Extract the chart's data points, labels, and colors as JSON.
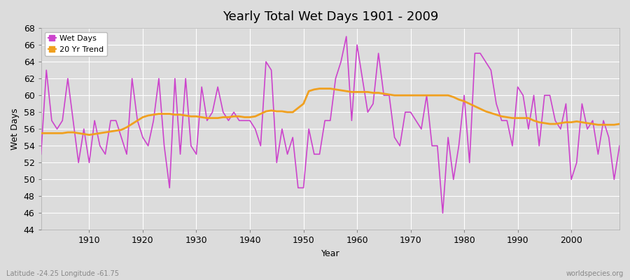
{
  "title": "Yearly Total Wet Days 1901 - 2009",
  "xlabel": "Year",
  "ylabel": "Wet Days",
  "footnote_left": "Latitude -24.25 Longitude -61.75",
  "footnote_right": "worldspecies.org",
  "ylim": [
    44,
    68
  ],
  "line_color": "#cc44cc",
  "trend_color": "#f0a020",
  "background_color": "#dcdcdc",
  "plot_bg_color": "#dcdcdc",
  "years": [
    1901,
    1902,
    1903,
    1904,
    1905,
    1906,
    1907,
    1908,
    1909,
    1910,
    1911,
    1912,
    1913,
    1914,
    1915,
    1916,
    1917,
    1918,
    1919,
    1920,
    1921,
    1922,
    1923,
    1924,
    1925,
    1926,
    1927,
    1928,
    1929,
    1930,
    1931,
    1932,
    1933,
    1934,
    1935,
    1936,
    1937,
    1938,
    1939,
    1940,
    1941,
    1942,
    1943,
    1944,
    1945,
    1946,
    1947,
    1948,
    1949,
    1950,
    1951,
    1952,
    1953,
    1954,
    1955,
    1956,
    1957,
    1958,
    1959,
    1960,
    1961,
    1962,
    1963,
    1964,
    1965,
    1966,
    1967,
    1968,
    1969,
    1970,
    1971,
    1972,
    1973,
    1974,
    1975,
    1976,
    1977,
    1978,
    1979,
    1980,
    1981,
    1982,
    1983,
    1984,
    1985,
    1986,
    1987,
    1988,
    1989,
    1990,
    1991,
    1992,
    1993,
    1994,
    1995,
    1996,
    1997,
    1998,
    1999,
    2000,
    2001,
    2002,
    2003,
    2004,
    2005,
    2006,
    2007,
    2008,
    2009
  ],
  "wet_days": [
    53,
    63,
    57,
    56,
    57,
    62,
    57,
    52,
    56,
    52,
    57,
    54,
    53,
    57,
    57,
    55,
    53,
    62,
    57,
    55,
    54,
    57,
    62,
    54,
    49,
    62,
    53,
    62,
    54,
    53,
    61,
    57,
    58,
    61,
    58,
    57,
    58,
    57,
    57,
    57,
    56,
    54,
    64,
    63,
    52,
    56,
    53,
    55,
    49,
    49,
    56,
    53,
    53,
    57,
    57,
    62,
    64,
    67,
    57,
    66,
    62,
    58,
    59,
    65,
    60,
    60,
    55,
    54,
    58,
    58,
    57,
    56,
    60,
    54,
    54,
    46,
    55,
    50,
    54,
    60,
    52,
    65,
    65,
    64,
    63,
    59,
    57,
    57,
    54,
    61,
    60,
    56,
    60,
    54,
    60,
    60,
    57,
    56,
    59,
    50,
    52,
    59,
    56,
    57,
    53,
    57,
    55,
    50,
    54
  ],
  "trend_values": [
    55.5,
    55.5,
    55.5,
    55.5,
    55.5,
    55.6,
    55.6,
    55.5,
    55.4,
    55.3,
    55.4,
    55.5,
    55.6,
    55.7,
    55.8,
    55.9,
    56.2,
    56.6,
    57.0,
    57.4,
    57.6,
    57.7,
    57.8,
    57.8,
    57.8,
    57.7,
    57.7,
    57.6,
    57.5,
    57.5,
    57.4,
    57.3,
    57.3,
    57.3,
    57.4,
    57.4,
    57.5,
    57.5,
    57.4,
    57.4,
    57.5,
    57.8,
    58.1,
    58.2,
    58.1,
    58.1,
    58.0,
    58.0,
    58.5,
    59.0,
    60.5,
    60.7,
    60.8,
    60.8,
    60.8,
    60.7,
    60.6,
    60.5,
    60.4,
    60.4,
    60.4,
    60.4,
    60.3,
    60.3,
    60.2,
    60.1,
    60.0,
    60.0,
    60.0,
    60.0,
    60.0,
    60.0,
    60.0,
    60.0,
    60.0,
    60.0,
    60.0,
    59.8,
    59.5,
    59.3,
    59.0,
    58.7,
    58.4,
    58.1,
    57.9,
    57.7,
    57.5,
    57.4,
    57.3,
    57.3,
    57.3,
    57.3,
    57.0,
    56.8,
    56.7,
    56.6,
    56.6,
    56.7,
    56.8,
    56.8,
    56.9,
    56.8,
    56.7,
    56.6,
    56.5,
    56.5,
    56.5,
    56.5,
    56.6
  ]
}
